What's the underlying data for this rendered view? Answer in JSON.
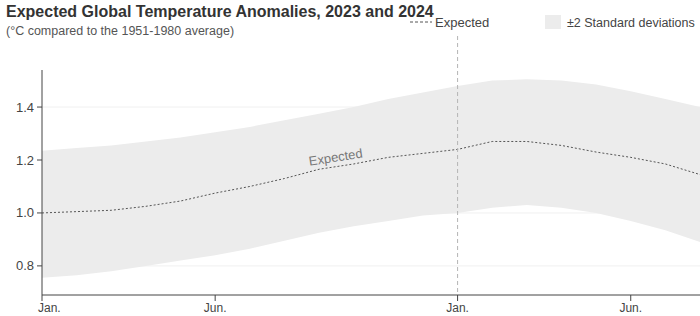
{
  "chart_data": {
    "type": "line",
    "title": "Expected Global Temperature Anomalies, 2023 and 2024",
    "subtitle": "(°C compared to the 1951-1980 average)",
    "x": [
      0,
      1,
      2,
      3,
      4,
      5,
      6,
      7,
      8,
      9,
      10,
      11,
      12,
      13,
      14,
      15,
      16,
      17,
      18,
      19
    ],
    "xlim": [
      0,
      19
    ],
    "xticks": [
      {
        "value": 0,
        "label": "Jan."
      },
      {
        "value": 5,
        "label": "Jun."
      },
      {
        "value": 12,
        "label": "Jan."
      },
      {
        "value": 17,
        "label": "Jun."
      }
    ],
    "ylim": [
      0.69,
      1.54
    ],
    "yticks": [
      {
        "value": 0.8,
        "label": "0.8"
      },
      {
        "value": 1.0,
        "label": "1.0"
      },
      {
        "value": 1.2,
        "label": "1.2"
      },
      {
        "value": 1.4,
        "label": "1.4"
      }
    ],
    "grid": true,
    "legend": "top-right",
    "series": [
      {
        "name": "Expected",
        "type": "line",
        "color": "#555555",
        "line_style": "dashed",
        "values": [
          1.0,
          1.005,
          1.01,
          1.025,
          1.045,
          1.075,
          1.1,
          1.13,
          1.165,
          1.185,
          1.21,
          1.225,
          1.24,
          1.27,
          1.27,
          1.255,
          1.23,
          1.21,
          1.185,
          1.145
        ]
      },
      {
        "name": "±2 Standard deviations",
        "type": "area",
        "color": "#ececec",
        "upper": [
          1.235,
          1.245,
          1.255,
          1.27,
          1.285,
          1.305,
          1.325,
          1.35,
          1.375,
          1.4,
          1.43,
          1.455,
          1.48,
          1.5,
          1.505,
          1.5,
          1.485,
          1.46,
          1.43,
          1.4
        ],
        "lower": [
          0.755,
          0.765,
          0.78,
          0.8,
          0.82,
          0.84,
          0.865,
          0.895,
          0.925,
          0.95,
          0.97,
          0.99,
          1.0,
          1.02,
          1.03,
          1.02,
          1.0,
          0.97,
          0.935,
          0.89
        ]
      }
    ],
    "annotations": [
      {
        "text": "Expected"
      }
    ],
    "reference_lines": [
      {
        "x": 12
      }
    ]
  }
}
